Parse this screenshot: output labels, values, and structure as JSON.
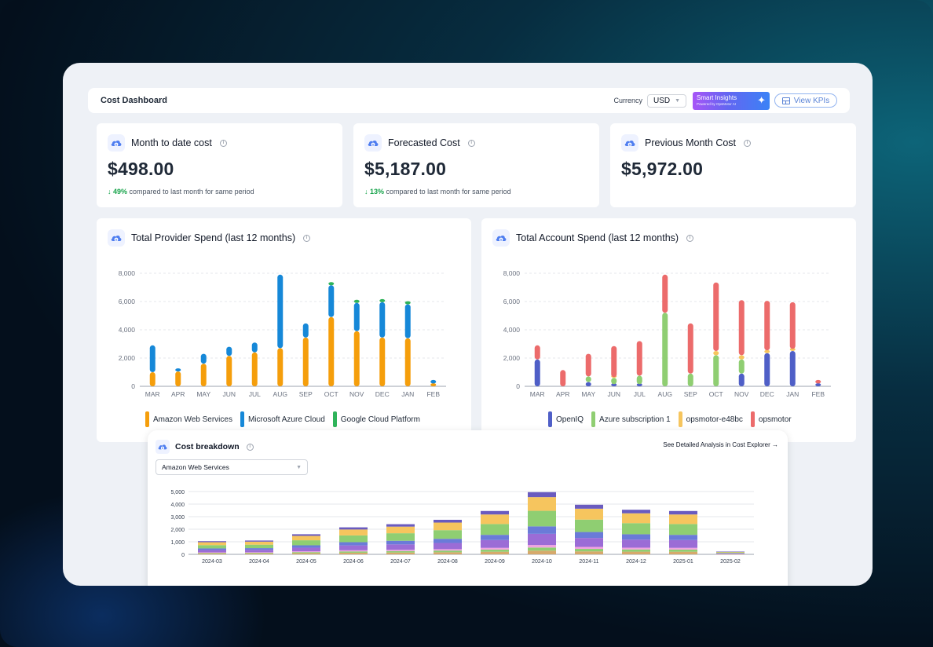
{
  "header": {
    "title": "Cost Dashboard",
    "currency_label": "Currency",
    "currency_value": "USD",
    "smart_insights_label": "Smart Insights",
    "smart_insights_sub": "Powered by OpsMotor AI",
    "view_kpis_label": "View KPIs"
  },
  "kpis": [
    {
      "label": "Month to date cost",
      "value": "$498.00",
      "change": "49%",
      "change_text": "compared to last month for same period"
    },
    {
      "label": "Forecasted Cost",
      "value": "$5,187.00",
      "change": "13%",
      "change_text": "compared to last month for same period"
    },
    {
      "label": "Previous Month Cost",
      "value": "$5,972.00"
    }
  ],
  "colors": {
    "aws": "#f59e0b",
    "azure": "#1688d8",
    "gcp": "#2fb35a",
    "openiq": "#4f5fc7",
    "azure_sub": "#8fce72",
    "e48bc": "#f6c55e",
    "opsmotor": "#ec6b6b"
  },
  "chart_data": [
    {
      "type": "bar",
      "title": "Total Provider Spend (last 12 months)",
      "categories": [
        "MAR",
        "APR",
        "MAY",
        "JUN",
        "JUL",
        "AUG",
        "SEP",
        "OCT",
        "NOV",
        "DEC",
        "JAN",
        "FEB"
      ],
      "ylim": [
        0,
        8000
      ],
      "yticks": [
        "0",
        "2,000",
        "4,000",
        "6,000",
        "8,000"
      ],
      "grid": true,
      "legend_position": "bottom",
      "series": [
        {
          "name": "Amazon Web Services",
          "values": [
            1000,
            1050,
            1600,
            2150,
            2400,
            2700,
            3450,
            4900,
            3900,
            3450,
            3400,
            200
          ]
        },
        {
          "name": "Microsoft Azure Cloud",
          "values": [
            1900,
            100,
            700,
            650,
            700,
            5200,
            1000,
            2250,
            2000,
            2500,
            2400,
            250
          ]
        },
        {
          "name": "Google Cloud Platform",
          "values": [
            0,
            0,
            0,
            0,
            0,
            0,
            0,
            200,
            200,
            100,
            100,
            0
          ]
        }
      ]
    },
    {
      "type": "bar",
      "title": "Total Account Spend (last 12 months)",
      "categories": [
        "MAR",
        "APR",
        "MAY",
        "JUN",
        "JUL",
        "AUG",
        "SEP",
        "OCT",
        "NOV",
        "DEC",
        "JAN",
        "FEB"
      ],
      "ylim": [
        0,
        8000
      ],
      "yticks": [
        "0",
        "2,000",
        "4,000",
        "6,000",
        "8,000"
      ],
      "grid": true,
      "legend_position": "bottom",
      "series": [
        {
          "name": "OpenIQ",
          "values": [
            1900,
            0,
            300,
            150,
            150,
            0,
            0,
            0,
            900,
            2350,
            2500,
            200
          ]
        },
        {
          "name": "Azure subscription 1",
          "values": [
            0,
            0,
            400,
            450,
            600,
            5200,
            900,
            2200,
            1000,
            0,
            0,
            0
          ]
        },
        {
          "name": "opsmotor-e48bc",
          "values": [
            0,
            0,
            0,
            50,
            0,
            0,
            0,
            300,
            300,
            200,
            150,
            0
          ]
        },
        {
          "name": "opsmotor",
          "values": [
            1000,
            1150,
            1600,
            2200,
            2450,
            2700,
            3550,
            4850,
            3900,
            3500,
            3300,
            250
          ]
        }
      ]
    },
    {
      "type": "bar",
      "title": "Cost breakdown",
      "categories": [
        "2024-03",
        "2024-04",
        "2024-05",
        "2024-06",
        "2024-07",
        "2024-08",
        "2024-09",
        "2024-10",
        "2024-11",
        "2024-12",
        "2025-01",
        "2025-02"
      ],
      "ylim": [
        0,
        5000
      ],
      "yticks": [
        "0",
        "1,000",
        "2,000",
        "3,000",
        "4,000",
        "5,000"
      ],
      "grid": true,
      "totals": [
        1050,
        1100,
        1600,
        2150,
        2400,
        2750,
        3450,
        4950,
        3950,
        3550,
        3450,
        220
      ]
    }
  ],
  "breakdown": {
    "title": "Cost breakdown",
    "link": "See Detailed Analysis in Cost Explorer",
    "service_select": "Amazon Web Services"
  }
}
